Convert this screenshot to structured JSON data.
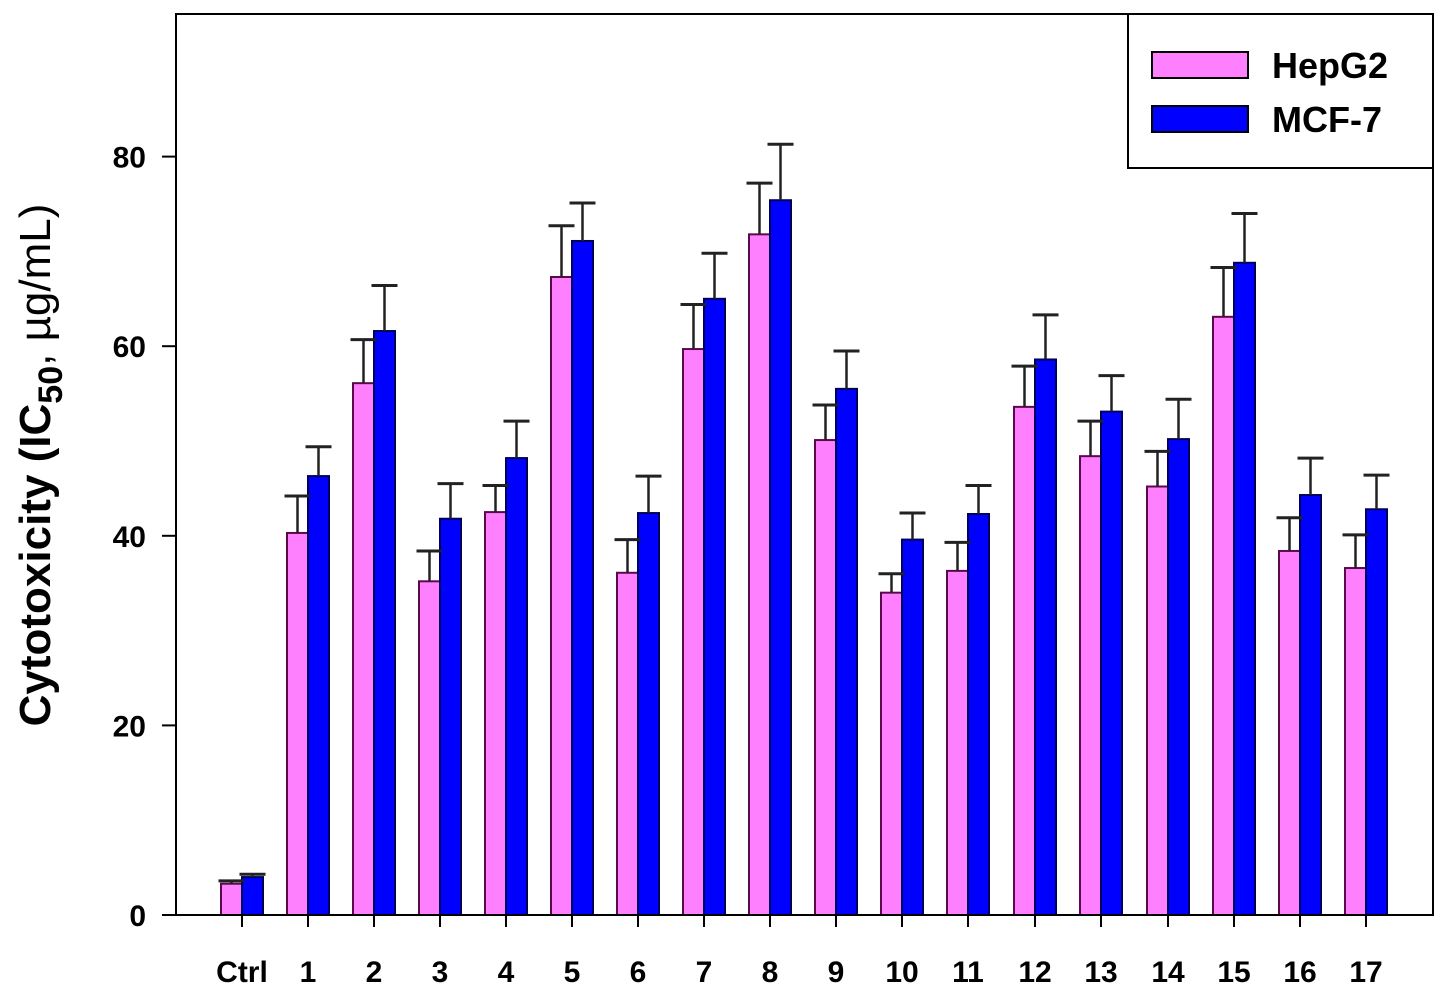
{
  "chart_data": {
    "type": "bar",
    "title": "",
    "xlabel": "",
    "ylabel": "Cytotoxicity (IC50, µg/mL)",
    "ylabel_parts": {
      "pre": "Cytotoxicity (IC",
      "sub": "50",
      "post": ", µg/mL)"
    },
    "ylim": [
      0,
      95
    ],
    "yticks": [
      0,
      20,
      40,
      60,
      80
    ],
    "grid": false,
    "legend_position": "upper right",
    "categories": [
      "Ctrl",
      "1",
      "2",
      "3",
      "4",
      "5",
      "6",
      "7",
      "8",
      "9",
      "10",
      "11",
      "12",
      "13",
      "14",
      "15",
      "16",
      "17"
    ],
    "series": [
      {
        "name": "HepG2",
        "color": "#ff80ff",
        "values": [
          3.3,
          40.3,
          56.1,
          35.2,
          42.5,
          67.3,
          36.1,
          59.7,
          71.8,
          50.1,
          34.0,
          36.3,
          53.6,
          48.4,
          45.2,
          63.1,
          38.4,
          36.6
        ],
        "errors": [
          0.3,
          3.9,
          4.6,
          3.2,
          2.8,
          5.4,
          3.5,
          4.7,
          5.4,
          3.7,
          2.0,
          3.0,
          4.3,
          3.7,
          3.7,
          5.2,
          3.5,
          3.5
        ]
      },
      {
        "name": "MCF-7",
        "color": "#0000ff",
        "values": [
          4.0,
          46.3,
          61.6,
          41.8,
          48.2,
          71.1,
          42.4,
          65.0,
          75.4,
          55.5,
          39.6,
          42.3,
          58.6,
          53.1,
          50.2,
          68.8,
          44.3,
          42.8
        ],
        "errors": [
          0.3,
          3.1,
          4.8,
          3.7,
          3.9,
          4.0,
          3.9,
          4.8,
          5.9,
          4.0,
          2.8,
          3.0,
          4.7,
          3.8,
          4.2,
          5.2,
          3.9,
          3.6
        ]
      }
    ]
  }
}
